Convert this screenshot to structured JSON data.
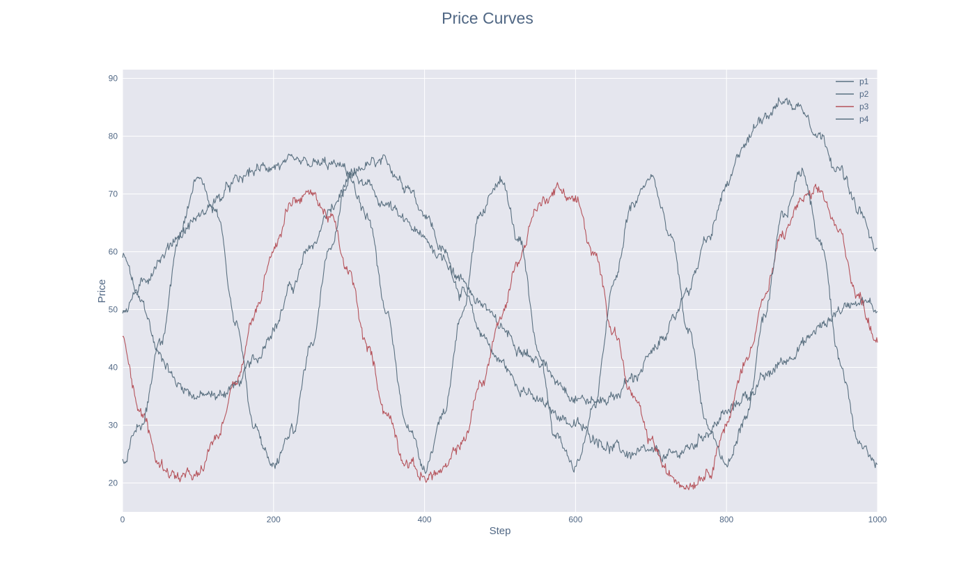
{
  "chart_data": {
    "type": "line",
    "title": "Price Curves",
    "xlabel": "Step",
    "ylabel": "Price",
    "xlim": [
      0,
      1000
    ],
    "ylim": [
      15,
      91.5
    ],
    "x_ticks": [
      0,
      200,
      400,
      600,
      800,
      1000
    ],
    "y_ticks": [
      20,
      30,
      40,
      50,
      60,
      70,
      80,
      90
    ],
    "grid": true,
    "legend_position": "top-right",
    "x": [
      0,
      25,
      50,
      75,
      100,
      125,
      150,
      175,
      200,
      225,
      250,
      275,
      300,
      325,
      350,
      375,
      400,
      425,
      450,
      475,
      500,
      525,
      550,
      575,
      600,
      625,
      650,
      675,
      700,
      725,
      750,
      775,
      800,
      825,
      850,
      875,
      900,
      925,
      950,
      975,
      1000
    ],
    "series": [
      {
        "name": "p1",
        "color": "#5a7080",
        "values": [
          59,
          51,
          42,
          37,
          35,
          35,
          37,
          41,
          47,
          54,
          61,
          67,
          72,
          75,
          75,
          72,
          67,
          60,
          53,
          46,
          41,
          37,
          34,
          32,
          30,
          28,
          26,
          25,
          25,
          24.5,
          26,
          29,
          32,
          35,
          38,
          41,
          44,
          47,
          50,
          52,
          50
        ]
      },
      {
        "name": "p2",
        "color": "#5a7080",
        "values": [
          50,
          54,
          59,
          63,
          66,
          69,
          72,
          74,
          75,
          75,
          75,
          75,
          74,
          71,
          68,
          65,
          62,
          59,
          55,
          51,
          47,
          44,
          41,
          38,
          35,
          34,
          35,
          38,
          42,
          47,
          54,
          62,
          71,
          79,
          84,
          86,
          85,
          80,
          74,
          67,
          60
        ]
      },
      {
        "name": "p3",
        "color": "#b5525a",
        "values": [
          45,
          32,
          23,
          21,
          21,
          28,
          38,
          49,
          61,
          69,
          70,
          66,
          56,
          43,
          32,
          24,
          21,
          22,
          27,
          37,
          48,
          59,
          68,
          71,
          69,
          59,
          47,
          35,
          27,
          21,
          20,
          22,
          30,
          41,
          52,
          63,
          69,
          70,
          63,
          52,
          45
        ]
      },
      {
        "name": "p4",
        "color": "#5a7080",
        "values": [
          24,
          30,
          45,
          62,
          73,
          67,
          48,
          29,
          23,
          29,
          44,
          62,
          73,
          66,
          49,
          31,
          23,
          32,
          50,
          66,
          73,
          62,
          43,
          28,
          23,
          33,
          54,
          68,
          73,
          63,
          46,
          30,
          23,
          31,
          48,
          66,
          74,
          62,
          41,
          28,
          23
        ]
      }
    ]
  }
}
